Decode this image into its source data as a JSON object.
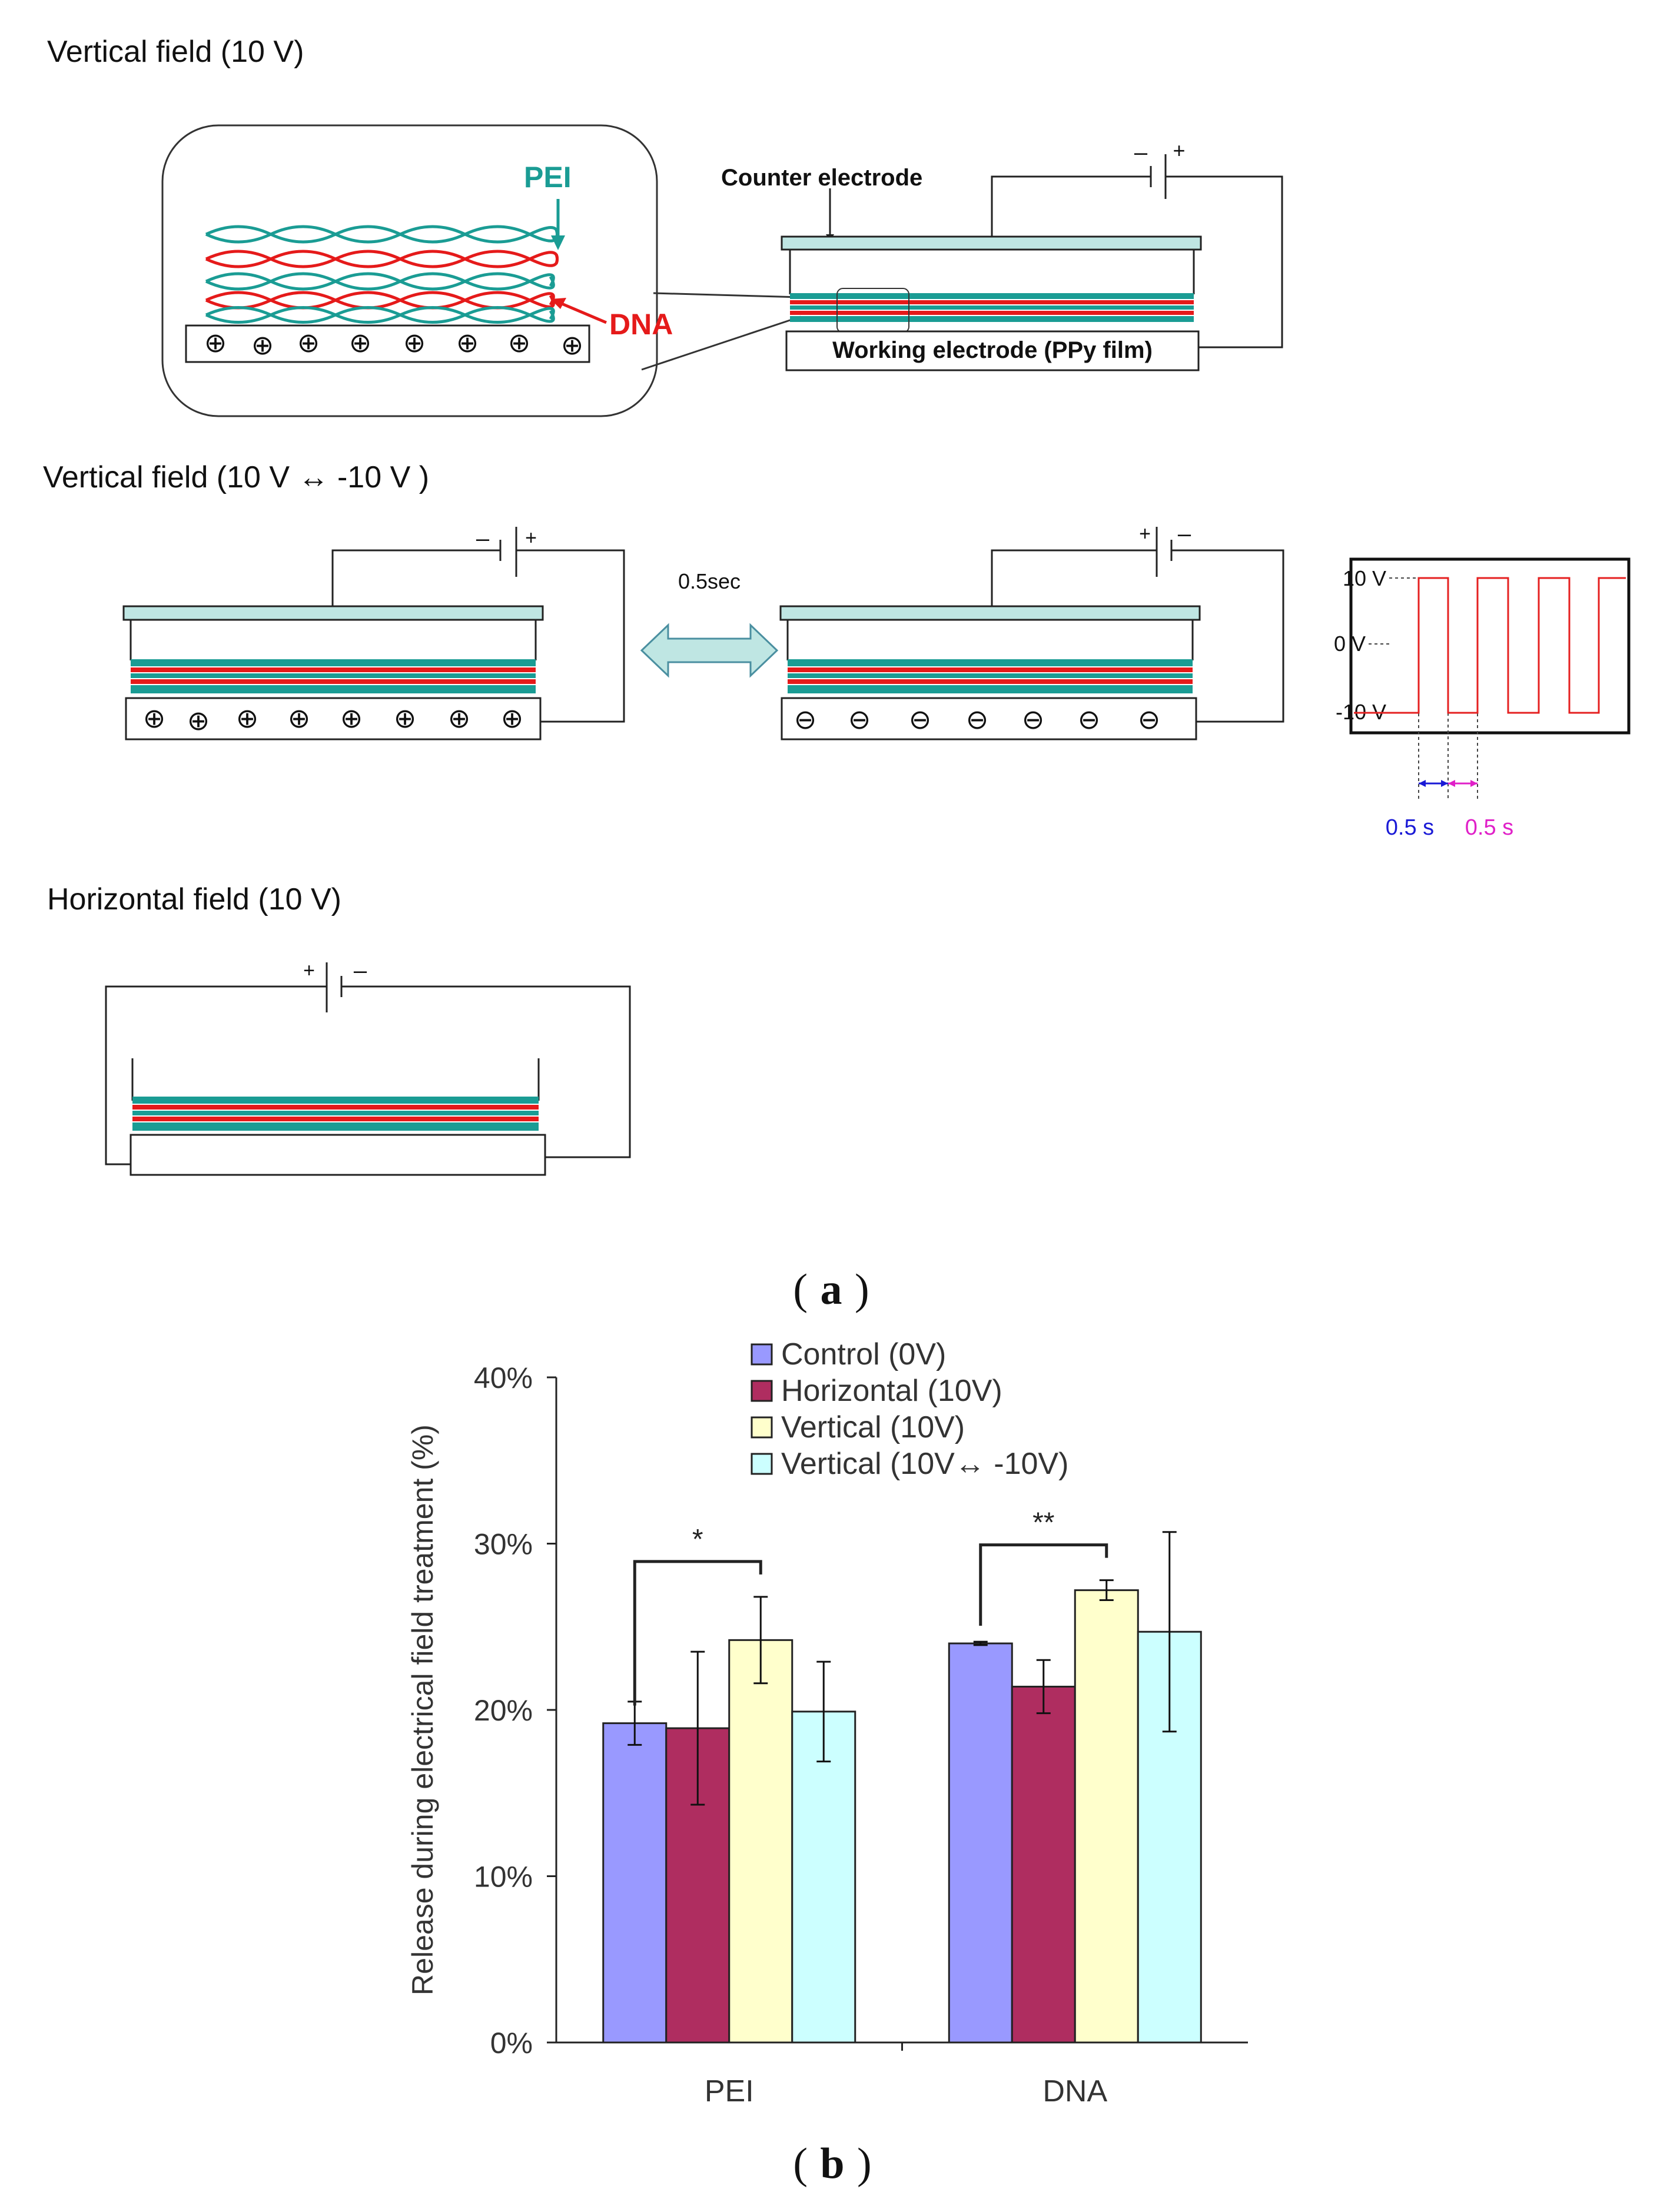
{
  "panel_a": {
    "label": "a",
    "section1": {
      "title": "Vertical field (10 V)",
      "pei_label": "PEI",
      "dna_label": "DNA",
      "counter_electrode": "Counter electrode",
      "working_electrode": "Working electrode (PPy film)",
      "battery_minus": "–",
      "battery_plus": "+",
      "charge_symbol": "⊕"
    },
    "section2": {
      "title": "Vertical field (10 V ↔ -10 V )",
      "interval_label": "0.5sec",
      "left_minus": "–",
      "left_plus": "+",
      "right_plus": "+",
      "right_minus": "–",
      "positive_symbol": "⊕",
      "negative_symbol": "⊖",
      "waveform": {
        "y_labels": [
          "10 V",
          "0 V",
          "-10 V"
        ],
        "duration_high": "0.5 s",
        "duration_low": "0.5 s"
      }
    },
    "section3": {
      "title": "Horizontal  field (10 V)",
      "battery_plus": "+",
      "battery_minus": "–"
    }
  },
  "panel_b": {
    "label": "b",
    "chart_data": {
      "type": "bar",
      "title": "",
      "xlabel": "",
      "ylabel": "Release during electrical field treatment (%)",
      "ylim": [
        0,
        40
      ],
      "yticks": [
        "0%",
        "10%",
        "20%",
        "30%",
        "40%"
      ],
      "categories": [
        "PEI",
        "DNA"
      ],
      "series": [
        {
          "name": "Control (0V)",
          "color": "#9999FF",
          "values": [
            19.2,
            24.0
          ],
          "errors": [
            1.3,
            0.1
          ]
        },
        {
          "name": "Horizontal (10V)",
          "color": "#AF2D60",
          "values": [
            18.9,
            21.4
          ],
          "errors": [
            4.6,
            1.6
          ]
        },
        {
          "name": "Vertical (10V)",
          "color": "#FFFFCC",
          "values": [
            24.2,
            27.2
          ],
          "errors": [
            2.6,
            0.6
          ]
        },
        {
          "name": "Vertical (10V↔ -10V)",
          "color": "#CCFFFF",
          "values": [
            19.9,
            24.7
          ],
          "errors": [
            3.0,
            6.0
          ]
        }
      ],
      "significance": [
        {
          "category": "PEI",
          "label": "*"
        },
        {
          "category": "DNA",
          "label": "**"
        }
      ]
    }
  },
  "colors": {
    "teal": "#1A9C94",
    "red": "#E51A1A",
    "electrode_fill": "#BFE6E3",
    "arrow_fill": "#BFE6E3",
    "wave": "#E52020",
    "blue_text": "#1A1AD6",
    "magenta_text": "#E020C8"
  }
}
